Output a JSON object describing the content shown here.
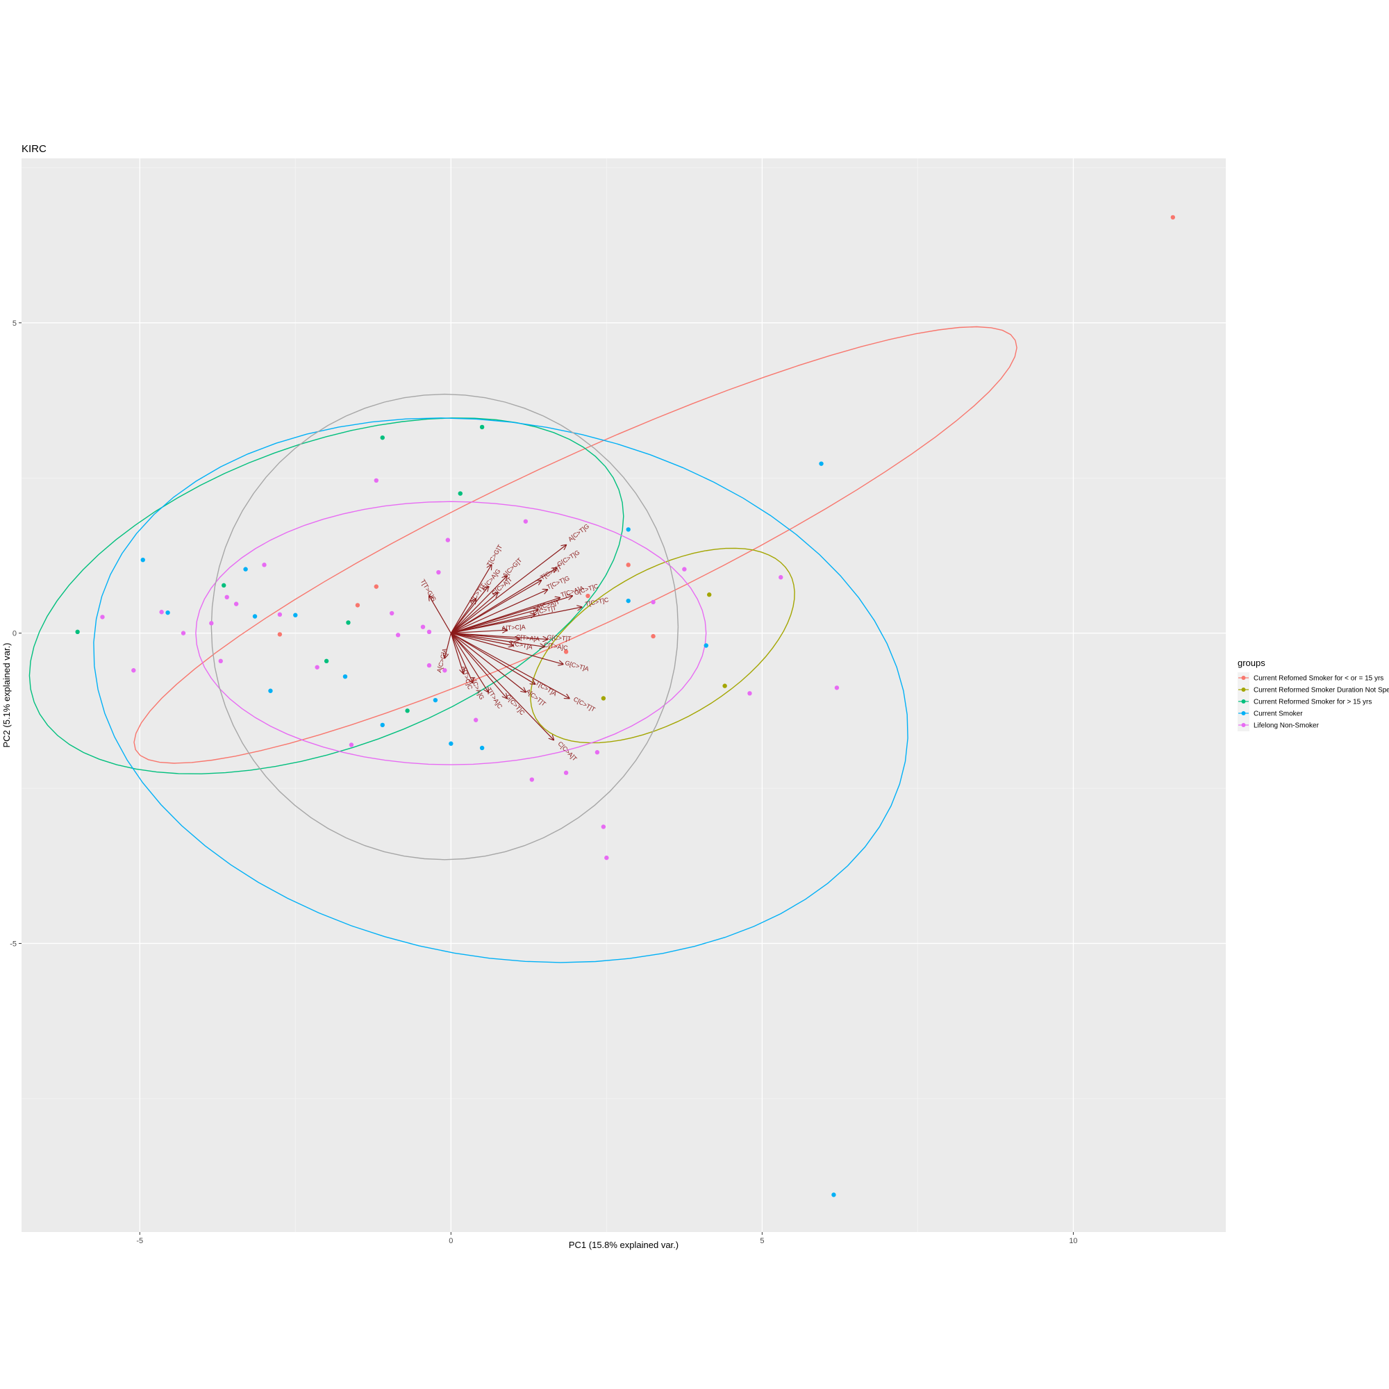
{
  "chart_data": {
    "type": "scatter",
    "title": "KIRC",
    "xlabel": "PC1 (15.8% explained var.)",
    "ylabel": "PC2 (5.1% explained var.)",
    "xlim": [
      -6.9,
      12.45
    ],
    "ylim": [
      -9.65,
      7.65
    ],
    "x_ticks": [
      -5,
      0,
      5,
      10
    ],
    "y_ticks": [
      5,
      0,
      -5
    ],
    "x_tick_labels": [
      "-5",
      "0",
      "5",
      "10"
    ],
    "y_tick_labels": [
      "5",
      "0",
      "-5"
    ],
    "grid": true,
    "legend": {
      "title": "groups",
      "position": "right",
      "entries": [
        {
          "name": "Current Refomed Smoker for < or = 15 yrs",
          "color": "#f8766d"
        },
        {
          "name": "Current Reformed Smoker Duration Not Specified",
          "color": "#a3a500"
        },
        {
          "name": "Current Reformed Smoker for > 15 yrs",
          "color": "#00bf7d"
        },
        {
          "name": "Current Smoker",
          "color": "#00b0f6"
        },
        {
          "name": "Lifelong Non-Smoker",
          "color": "#e76bf3"
        }
      ]
    },
    "series": [
      {
        "name": "Current Refomed Smoker for < or = 15 yrs",
        "color": "#f8766d",
        "points": [
          [
            11.6,
            6.7
          ],
          [
            2.85,
            1.1
          ],
          [
            2.2,
            0.6
          ],
          [
            3.25,
            -0.05
          ],
          [
            1.85,
            -0.3
          ],
          [
            -2.75,
            -0.02
          ],
          [
            -1.5,
            0.45
          ],
          [
            -1.2,
            0.75
          ]
        ]
      },
      {
        "name": "Current Reformed Smoker Duration Not Specified",
        "color": "#a3a500",
        "points": [
          [
            4.15,
            0.62
          ],
          [
            4.4,
            -0.85
          ],
          [
            2.45,
            -1.05
          ]
        ]
      },
      {
        "name": "Current Reformed Smoker for > 15 yrs",
        "color": "#00bf7d",
        "points": [
          [
            -6.0,
            0.02
          ],
          [
            -1.1,
            3.15
          ],
          [
            0.5,
            3.32
          ],
          [
            0.15,
            2.25
          ],
          [
            -3.65,
            0.77
          ],
          [
            -1.65,
            0.17
          ],
          [
            -2.0,
            -0.45
          ],
          [
            -0.7,
            -1.25
          ]
        ]
      },
      {
        "name": "Current Smoker",
        "color": "#00b0f6",
        "points": [
          [
            5.95,
            2.73
          ],
          [
            6.15,
            -9.05
          ],
          [
            2.85,
            1.67
          ],
          [
            -4.95,
            1.18
          ],
          [
            -3.3,
            1.03
          ],
          [
            -4.55,
            0.33
          ],
          [
            -3.15,
            0.27
          ],
          [
            -2.5,
            0.29
          ],
          [
            2.85,
            0.52
          ],
          [
            4.1,
            -0.2
          ],
          [
            -1.7,
            -0.7
          ],
          [
            -2.9,
            -0.93
          ],
          [
            -0.25,
            -1.08
          ],
          [
            -1.1,
            -1.48
          ],
          [
            0.0,
            -1.78
          ],
          [
            0.5,
            -1.85
          ]
        ]
      },
      {
        "name": "Lifelong Non-Smoker",
        "color": "#e76bf3",
        "points": [
          [
            -1.2,
            2.46
          ],
          [
            1.2,
            1.8
          ],
          [
            -0.05,
            1.5
          ],
          [
            -3.0,
            1.1
          ],
          [
            -0.2,
            0.98
          ],
          [
            3.75,
            1.03
          ],
          [
            5.3,
            0.9
          ],
          [
            3.25,
            0.5
          ],
          [
            -3.6,
            0.58
          ],
          [
            -3.45,
            0.47
          ],
          [
            -4.65,
            0.34
          ],
          [
            -2.75,
            0.3
          ],
          [
            -5.6,
            0.26
          ],
          [
            -3.85,
            0.16
          ],
          [
            -0.45,
            0.1
          ],
          [
            -0.35,
            0.02
          ],
          [
            -4.3,
            0.0
          ],
          [
            -0.85,
            -0.03
          ],
          [
            -0.95,
            0.32
          ],
          [
            -3.7,
            -0.45
          ],
          [
            -2.15,
            -0.55
          ],
          [
            -0.35,
            -0.52
          ],
          [
            -0.1,
            -0.6
          ],
          [
            -5.1,
            -0.6
          ],
          [
            4.8,
            -0.97
          ],
          [
            6.2,
            -0.88
          ],
          [
            0.4,
            -1.4
          ],
          [
            -1.6,
            -1.8
          ],
          [
            2.35,
            -1.92
          ],
          [
            1.85,
            -2.25
          ],
          [
            1.3,
            -2.36
          ],
          [
            2.45,
            -3.12
          ],
          [
            2.5,
            -3.62
          ]
        ]
      }
    ],
    "ellipses": [
      {
        "name": "Current Refomed Smoker for < or = 15 yrs",
        "color": "#f8766d",
        "center": [
          2.0,
          1.42
        ],
        "semi_major": 7.8,
        "semi_minor": 1.35,
        "angle_deg": 25
      },
      {
        "name": "Current Reformed Smoker Duration Not Specified",
        "color": "#a3a500",
        "center": [
          3.4,
          -0.2
        ],
        "semi_major": 2.35,
        "semi_minor": 1.2,
        "angle_deg": 30
      },
      {
        "name": "Current Reformed Smoker for > 15 yrs",
        "color": "#00bf7d",
        "center": [
          -2.0,
          0.6
        ],
        "semi_major": 5.0,
        "semi_minor": 2.45,
        "angle_deg": 20
      },
      {
        "name": "Current Smoker",
        "color": "#00b0f6",
        "center": [
          0.8,
          -0.92
        ],
        "semi_major": 6.6,
        "semi_minor": 4.3,
        "angle_deg": -10
      },
      {
        "name": "Lifelong Non-Smoker",
        "color": "#e76bf3",
        "center": [
          0.0,
          0.0
        ],
        "semi_major": 4.1,
        "semi_minor": 2.12,
        "angle_deg": 0
      },
      {
        "name": "unit circle",
        "color": "#a6a6a6",
        "center": [
          -0.1,
          0.1
        ],
        "semi_major": 3.75,
        "semi_minor": 3.75,
        "angle_deg": 0
      }
    ],
    "loadings": [
      {
        "label": "A[C>T]G",
        "x": 1.85,
        "y": 1.42
      },
      {
        "label": "T[C>G]T",
        "x": 0.65,
        "y": 1.1
      },
      {
        "label": "G[C>T]G",
        "x": 1.7,
        "y": 1.05
      },
      {
        "label": "T[C>A]T",
        "x": 1.45,
        "y": 0.85
      },
      {
        "label": "T[C>T]G",
        "x": 1.55,
        "y": 0.7
      },
      {
        "label": "T[C>A]A",
        "x": 1.75,
        "y": 0.57
      },
      {
        "label": "G[C>T]C",
        "x": 1.95,
        "y": 0.6
      },
      {
        "label": "T[C>T]C",
        "x": 2.1,
        "y": 0.42
      },
      {
        "label": "A[C>A]T",
        "x": 1.4,
        "y": 0.38
      },
      {
        "label": "C[C>T]T",
        "x": 1.35,
        "y": 0.3
      },
      {
        "label": "G[C>A]G",
        "x": 0.6,
        "y": 0.75
      },
      {
        "label": "A[C>G]T",
        "x": 0.9,
        "y": 0.92
      },
      {
        "label": "G[C>A]T",
        "x": 0.75,
        "y": 0.65
      },
      {
        "label": "A[C>T]T",
        "x": 0.4,
        "y": 0.55
      },
      {
        "label": "T[T>G]G",
        "x": -0.35,
        "y": 0.6
      },
      {
        "label": "A[T>C]A",
        "x": 0.9,
        "y": 0.05
      },
      {
        "label": "C[T>A]A",
        "x": 1.1,
        "y": -0.1
      },
      {
        "label": "T[C>T]A",
        "x": 1.0,
        "y": -0.2
      },
      {
        "label": "G[C>T]T",
        "x": 1.55,
        "y": -0.1
      },
      {
        "label": "C[T>A]C",
        "x": 1.5,
        "y": -0.22
      },
      {
        "label": "G[C>T]A",
        "x": 1.8,
        "y": -0.5
      },
      {
        "label": "T[C>T]A",
        "x": 1.35,
        "y": -0.82
      },
      {
        "label": "A[C>T]T",
        "x": 1.2,
        "y": -0.95
      },
      {
        "label": "C[C>T]T",
        "x": 1.9,
        "y": -1.05
      },
      {
        "label": "C[C>A]T",
        "x": 1.65,
        "y": -1.72
      },
      {
        "label": "G[C>T]C",
        "x": 0.9,
        "y": -1.05
      },
      {
        "label": "T[T>A]C",
        "x": 0.6,
        "y": -0.95
      },
      {
        "label": "A[C>A]G",
        "x": 0.35,
        "y": -0.8
      },
      {
        "label": "A[T>C]C",
        "x": 0.2,
        "y": -0.65
      },
      {
        "label": "A[C>G]A",
        "x": -0.1,
        "y": -0.4
      }
    ]
  }
}
